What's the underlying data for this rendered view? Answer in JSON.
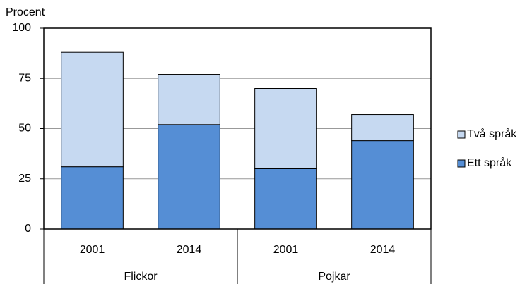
{
  "chart_data": {
    "type": "stacked-bar",
    "y_label": "Procent",
    "categories": [
      "2001",
      "2014",
      "2001",
      "2014"
    ],
    "groups": [
      "Flickor",
      "Pojkar"
    ],
    "series": [
      {
        "name": "Ett språk",
        "color": "#558ed5",
        "values": [
          31,
          52,
          30,
          44
        ]
      },
      {
        "name": "Två språk",
        "color": "#c6d9f1",
        "values": [
          57,
          25,
          40,
          13
        ]
      }
    ],
    "ylim": [
      0,
      100
    ],
    "yticks": [
      0,
      25,
      50,
      75,
      100
    ],
    "grid": true
  }
}
